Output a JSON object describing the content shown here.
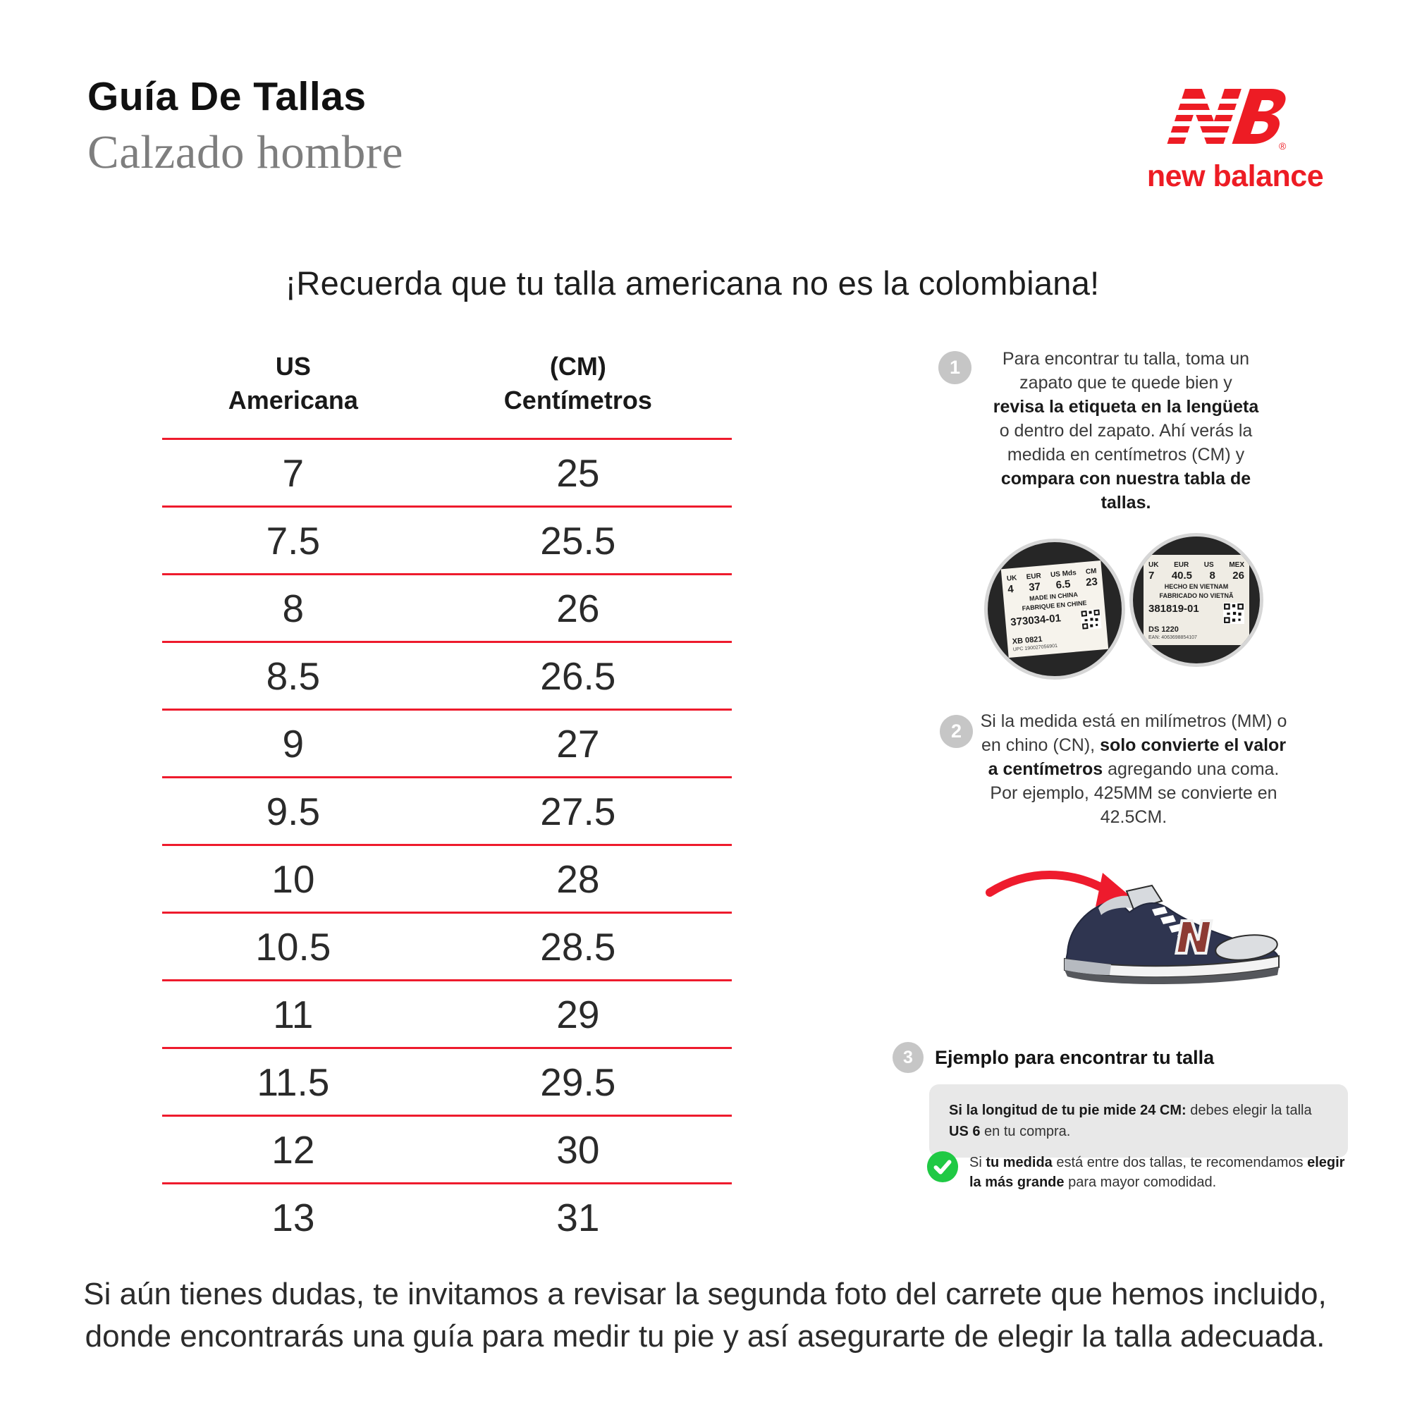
{
  "header": {
    "title": "Guía De Tallas",
    "subtitle": "Calzado hombre"
  },
  "logo": {
    "brand": "new balance",
    "registered": "®"
  },
  "main_heading": "¡Recuerda que tu talla americana no es la colombiana!",
  "table": {
    "col1_header_line1": "US",
    "col1_header_line2": "Americana",
    "col2_header_line1": "(CM)",
    "col2_header_line2": "Centímetros",
    "rows": [
      {
        "us": "7",
        "cm": "25"
      },
      {
        "us": "7.5",
        "cm": "25.5"
      },
      {
        "us": "8",
        "cm": "26"
      },
      {
        "us": "8.5",
        "cm": "26.5"
      },
      {
        "us": "9",
        "cm": "27"
      },
      {
        "us": "9.5",
        "cm": "27.5"
      },
      {
        "us": "10",
        "cm": "28"
      },
      {
        "us": "10.5",
        "cm": "28.5"
      },
      {
        "us": "11",
        "cm": "29"
      },
      {
        "us": "11.5",
        "cm": "29.5"
      },
      {
        "us": "12",
        "cm": "30"
      },
      {
        "us": "13",
        "cm": "31"
      }
    ]
  },
  "steps": {
    "one": {
      "number": "1",
      "segments": [
        {
          "t": "Para encontrar tu talla, toma un zapato que te quede bien y ",
          "b": false
        },
        {
          "t": "revisa la etiqueta en la lengüeta",
          "b": true
        },
        {
          "t": " o dentro del zapato. Ahí verás la medida en centímetros (CM) y ",
          "b": false
        },
        {
          "t": "compara con nuestra tabla de tallas.",
          "b": true
        }
      ]
    },
    "two": {
      "number": "2",
      "segments": [
        {
          "t": "Si la medida está en milímetros (MM) o en chino (CN), ",
          "b": false
        },
        {
          "t": "solo convierte el valor a centímetros",
          "b": true
        },
        {
          "t": " agregando una coma. Por ejemplo, 425MM se convierte en 42.5CM.",
          "b": false
        }
      ]
    },
    "three": {
      "number": "3",
      "heading": "Ejemplo para encontrar tu talla"
    }
  },
  "labels_photo": {
    "left": {
      "cols": [
        "UK",
        "EUR",
        "US Mds",
        "CM"
      ],
      "vals": [
        "4",
        "37",
        "6.5",
        "23"
      ],
      "made": "MADE IN CHINA",
      "made2": "FABRIQUE EN CHINE",
      "sku": "373034-01",
      "row": "XB      0821",
      "ean": "UPC 190027056901"
    },
    "right": {
      "cols": [
        "UK",
        "EUR",
        "US",
        "MEX"
      ],
      "vals": [
        "7",
        "40.5",
        "8",
        "26"
      ],
      "made": "HECHO EN VIETNAM",
      "made2": "FABRICADO NO VIETNÃ",
      "sku": "381819-01",
      "row": "DS      1220",
      "ean": "EAN: 4063698854107"
    }
  },
  "example_box": {
    "segments": [
      {
        "t": "Si la longitud de tu pie mide 24 CM:",
        "b": true
      },
      {
        "t": " debes elegir la talla ",
        "b": false
      },
      {
        "t": "US 6",
        "b": true
      },
      {
        "t": " en tu compra.",
        "b": false
      }
    ]
  },
  "tip": {
    "segments": [
      {
        "t": "Si ",
        "b": false
      },
      {
        "t": "tu medida",
        "b": true
      },
      {
        "t": " está entre dos tallas, te recomendamos ",
        "b": false
      },
      {
        "t": "elegir la más grande",
        "b": true
      },
      {
        "t": " para mayor comodidad.",
        "b": false
      }
    ]
  },
  "footer": {
    "line1": "Si aún tienes dudas, te invitamos a revisar la segunda foto del carrete que hemos incluido,",
    "line2": "donde encontrarás una guía para medir tu pie y así asegurarte de elegir la talla adecuada."
  },
  "colors": {
    "accent_red": "#ee1b2d",
    "brand_red": "#ed1c24",
    "check_green": "#1fc944",
    "circle_gray": "#c6c6c6",
    "box_gray": "#e8e8e8",
    "subtitle_gray": "#7e7e7e"
  }
}
